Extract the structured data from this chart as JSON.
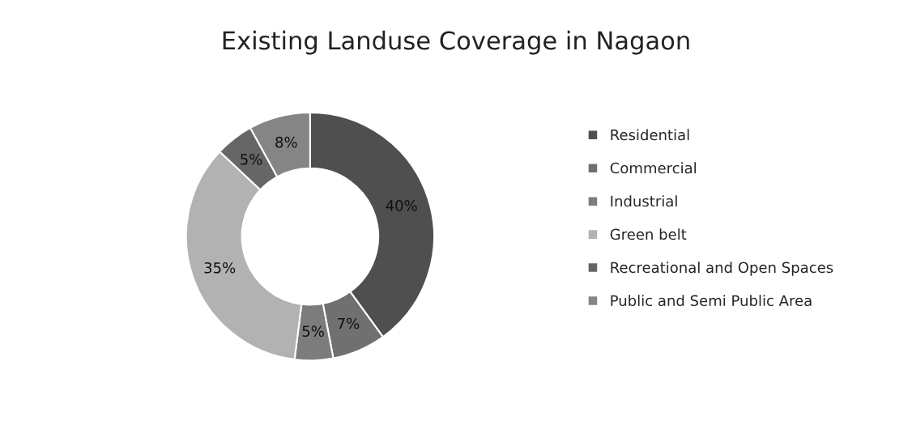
{
  "chart_data": {
    "type": "donut",
    "title": "Existing Landuse Coverage in Nagaon",
    "categories": [
      "Residential",
      "Commercial",
      "Industrial",
      "Green belt",
      "Recreational and Open Spaces",
      "Public and Semi Public Area"
    ],
    "values": [
      40,
      7,
      5,
      35,
      5,
      8
    ],
    "colors": [
      "#4f4f4f",
      "#707070",
      "#7c7c7c",
      "#b2b2b2",
      "#666666",
      "#858585"
    ],
    "value_labels": [
      "40%",
      "7%",
      "5%",
      "35%",
      "5%",
      "8%"
    ],
    "legend": "right"
  }
}
